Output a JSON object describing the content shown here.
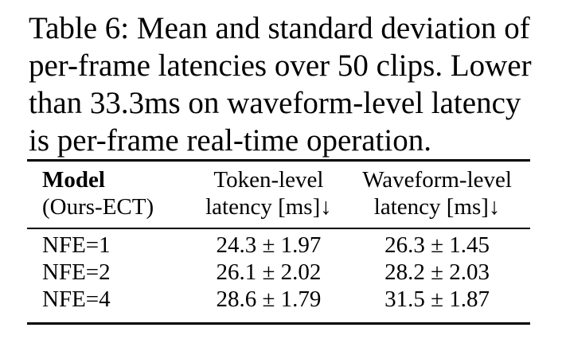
{
  "caption": {
    "lines": [
      "Table 6: Mean and standard deviation of",
      "per-frame latencies over 50 clips. Lower",
      "than 33.3ms on waveform-level latency",
      "is per-frame real-time operation."
    ]
  },
  "table": {
    "header": {
      "model_line1": "Model",
      "model_line2": "(Ours-ECT)",
      "token_line1": "Token-level",
      "token_line2": "latency [ms]↓",
      "wave_line1": "Waveform-level",
      "wave_line2": "latency [ms]↓"
    },
    "rows": [
      {
        "model": "NFE=1",
        "token": "24.3 ± 1.97",
        "wave": "26.3 ± 1.45"
      },
      {
        "model": "NFE=2",
        "token": "26.1 ± 2.02",
        "wave": "28.2 ± 2.03"
      },
      {
        "model": "NFE=4",
        "token": "28.6 ± 1.79",
        "wave": "31.5 ± 1.87"
      }
    ]
  }
}
